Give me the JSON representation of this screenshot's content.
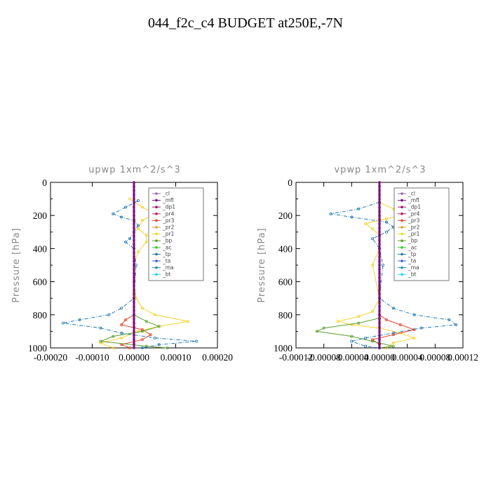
{
  "figure": {
    "title": "044_f2c_c4  BUDGET at250E,-7N"
  },
  "legend_items": [
    {
      "name": "_cl",
      "color": "#9467bd"
    },
    {
      "name": "_mfl",
      "color": "#7b0f7b"
    },
    {
      "name": "_dp1",
      "color": "#a0196b"
    },
    {
      "name": "_pr4",
      "color": "#c2185b"
    },
    {
      "name": "_pr3",
      "color": "#e6432e"
    },
    {
      "name": "_pr2",
      "color": "#e0a020"
    },
    {
      "name": "_pr1",
      "color": "#f2d42a"
    },
    {
      "name": "_bp",
      "color": "#5a9e2f"
    },
    {
      "name": "_ac",
      "color": "#33cc33"
    },
    {
      "name": "_tp",
      "color": "#1f77b4"
    },
    {
      "name": "_ta",
      "color": "#3b5bdb"
    },
    {
      "name": "_ma",
      "color": "#2a8fb5"
    },
    {
      "name": "_bt",
      "color": "#22d3ee"
    }
  ],
  "chart_data": [
    {
      "type": "line",
      "title": "upwp   1xm^2/s^3",
      "ylabel": "Pressure [hPa]",
      "xlabel": "",
      "xlim": [
        -0.0002,
        0.0002
      ],
      "ylim": [
        1000,
        0
      ],
      "xticks": [
        -0.0002,
        -0.0001,
        0,
        0.0001,
        0.0002
      ],
      "xtick_labels": [
        "-0.00020",
        "-0.00010",
        "0.00000",
        "0.00010",
        "0.00020"
      ],
      "yticks": [
        0,
        200,
        400,
        600,
        800,
        1000
      ],
      "ytick_labels": [
        "0",
        "200",
        "400",
        "600",
        "800",
        "1000"
      ],
      "legend": "top-right",
      "series": [
        {
          "name": "_pr1",
          "color": "#f2d42a",
          "p": [
            100,
            150,
            190,
            230,
            280,
            320,
            360,
            420,
            500,
            600,
            700,
            760,
            800,
            840,
            870,
            900,
            940,
            970,
            1000
          ],
          "x": [
            -1e-05,
            2e-05,
            5e-05,
            2e-05,
            1e-05,
            3e-05,
            3e-05,
            1e-05,
            0,
            0,
            5e-06,
            2e-05,
            5e-05,
            0.00013,
            6e-05,
            1e-05,
            -3e-05,
            -8e-05,
            -5e-05
          ]
        },
        {
          "name": "_pr3",
          "color": "#e6432e",
          "p": [
            800,
            830,
            860,
            890,
            920,
            950,
            980,
            1000
          ],
          "x": [
            0,
            -2e-05,
            -3e-05,
            2e-05,
            4e-05,
            2e-05,
            -3e-05,
            -1e-05
          ]
        },
        {
          "name": "_bp",
          "color": "#5a9e2f",
          "p": [
            800,
            840,
            870,
            900,
            930,
            960,
            990,
            1000
          ],
          "x": [
            0,
            3e-05,
            6e-05,
            2e-05,
            -5e-05,
            -8e-05,
            3e-05,
            8e-05
          ]
        },
        {
          "name": "_tp",
          "color": "#1f77b4",
          "p": [
            110,
            150,
            190,
            210,
            230,
            260,
            300,
            340,
            360,
            400,
            500,
            700,
            760,
            800,
            830,
            850,
            880,
            910,
            940,
            960,
            980,
            1000
          ],
          "x": [
            1e-05,
            -2e-05,
            -5e-05,
            -3e-05,
            0,
            1e-05,
            0,
            -1e-05,
            -2e-05,
            0,
            5e-06,
            0,
            -3e-05,
            -6e-05,
            -0.00013,
            -0.00017,
            -8e-05,
            -3e-05,
            5e-05,
            0.00015,
            6e-05,
            2e-05
          ]
        },
        {
          "name": "_mfl",
          "color": "#7b0f7b",
          "p": [
            0,
            1000
          ],
          "x": [
            0,
            0
          ]
        }
      ]
    },
    {
      "type": "line",
      "title": "vpwp   1xm^2/s^3",
      "ylabel": "Pressure [hPa]",
      "xlabel": "",
      "xlim": [
        -0.00012,
        0.00012
      ],
      "ylim": [
        1000,
        0
      ],
      "xticks": [
        -0.00012,
        -8e-05,
        -4e-05,
        0,
        4e-05,
        8e-05,
        0.00012
      ],
      "xtick_labels": [
        "-0.00012",
        "-0.00008",
        "-0.00004",
        "0.00000",
        "0.00004",
        "0.00008",
        "0.00012"
      ],
      "yticks": [
        0,
        200,
        400,
        600,
        800,
        1000
      ],
      "ytick_labels": [
        "0",
        "200",
        "400",
        "600",
        "800",
        "1000"
      ],
      "legend": "top-right",
      "series": [
        {
          "name": "_pr1",
          "color": "#f2d42a",
          "p": [
            120,
            160,
            190,
            220,
            250,
            280,
            320,
            400,
            500,
            700,
            780,
            810,
            840,
            860,
            880,
            910,
            940,
            970,
            1000
          ],
          "x": [
            0,
            2e-05,
            4e-05,
            1e-05,
            -2e-05,
            -1e-05,
            0,
            0,
            -1e-05,
            0,
            -1e-05,
            -3e-05,
            -6e-05,
            -4e-05,
            0,
            3e-05,
            5e-05,
            2e-05,
            1e-05
          ]
        },
        {
          "name": "_pr3",
          "color": "#e6432e",
          "p": [
            800,
            830,
            860,
            890,
            920,
            950,
            980,
            1000
          ],
          "x": [
            0,
            1e-05,
            3e-05,
            5e-05,
            2e-05,
            -1e-05,
            0,
            0
          ]
        },
        {
          "name": "_bp",
          "color": "#5a9e2f",
          "p": [
            820,
            850,
            880,
            900,
            930,
            960,
            990,
            1000
          ],
          "x": [
            0,
            -3e-05,
            -8e-05,
            -9e-05,
            -4e-05,
            -1e-05,
            2e-05,
            0
          ]
        },
        {
          "name": "_tp",
          "color": "#1f77b4",
          "p": [
            120,
            160,
            190,
            210,
            240,
            270,
            300,
            320,
            340,
            400,
            500,
            700,
            760,
            800,
            830,
            860,
            880,
            910,
            940,
            960,
            990,
            1000
          ],
          "x": [
            0,
            -3e-05,
            -7e-05,
            -4e-05,
            1e-05,
            2e-05,
            1e-05,
            0,
            -1e-05,
            0,
            5e-06,
            0,
            2e-05,
            5e-05,
            0.0001,
            0.00011,
            6e-05,
            2e-05,
            -2e-05,
            -4e-05,
            -2e-05,
            0
          ]
        },
        {
          "name": "_mfl",
          "color": "#7b0f7b",
          "p": [
            0,
            1000
          ],
          "x": [
            0,
            0
          ]
        }
      ]
    }
  ]
}
